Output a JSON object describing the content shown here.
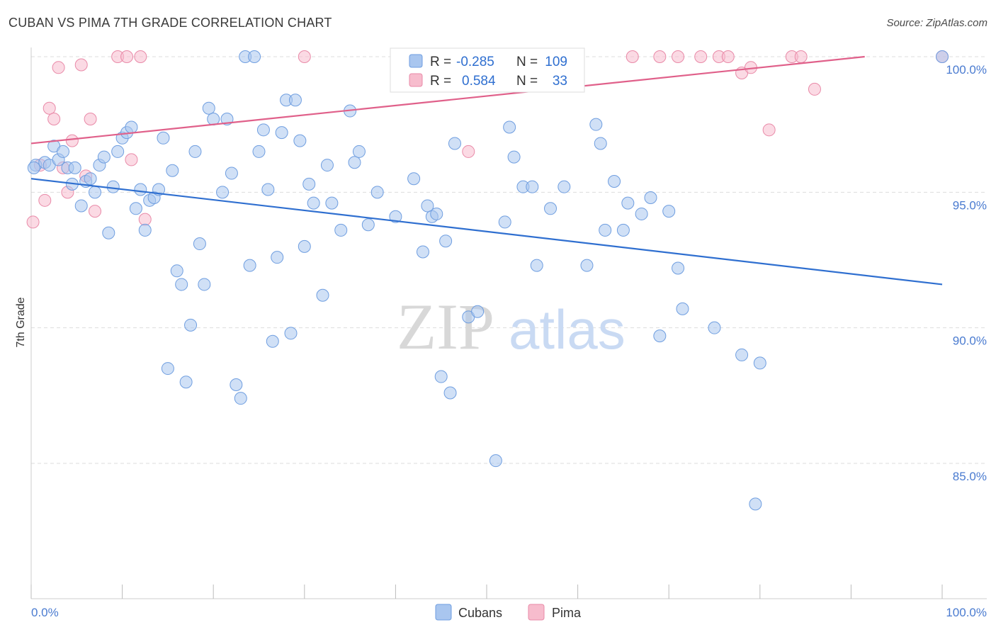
{
  "title": "CUBAN VS PIMA 7TH GRADE CORRELATION CHART",
  "source": "Source: ZipAtlas.com",
  "watermark": {
    "zip": "ZIP",
    "atlas": "atlas"
  },
  "colors": {
    "cubans_fill": "#a9c6ef",
    "cubans_stroke": "#6f9ee0",
    "cubans_line": "#2f6fd0",
    "pima_fill": "#f7bccd",
    "pima_stroke": "#e98aa8",
    "pima_line": "#e0608a",
    "grid": "#dddddd",
    "axis_label": "#4a7bd0"
  },
  "legend": {
    "rows": [
      {
        "r_label": "R =",
        "r_value": "-0.285",
        "n_label": "N =",
        "n_value": "109"
      },
      {
        "r_label": "R =",
        "r_value": "0.584",
        "n_label": "N =",
        "n_value": "33"
      }
    ]
  },
  "chart_data": {
    "type": "scatter",
    "title": "CUBAN VS PIMA 7TH GRADE CORRELATION CHART",
    "xlabel": "",
    "ylabel": "7th Grade",
    "xlim": [
      0,
      100
    ],
    "ylim": [
      80.5,
      100.7
    ],
    "x_tick_labels": [
      "0.0%",
      "100.0%"
    ],
    "y_ticks": [
      100,
      95,
      90,
      85
    ],
    "y_tick_labels": [
      "100.0%",
      "95.0%",
      "90.0%",
      "85.0%"
    ],
    "grid": true,
    "legend_placement": "bottom-center",
    "series": [
      {
        "name": "Cubans",
        "trend": {
          "x": [
            0,
            100
          ],
          "y": [
            95.5,
            91.6
          ]
        },
        "points": [
          [
            0.5,
            96.0
          ],
          [
            1.5,
            96.1
          ],
          [
            2,
            96.0
          ],
          [
            2.5,
            96.7
          ],
          [
            3,
            96.2
          ],
          [
            3.5,
            96.5
          ],
          [
            4,
            95.9
          ],
          [
            4.5,
            95.3
          ],
          [
            4.8,
            95.9
          ],
          [
            5.5,
            94.5
          ],
          [
            6,
            95.4
          ],
          [
            6.5,
            95.5
          ],
          [
            7,
            95.0
          ],
          [
            7.5,
            96.0
          ],
          [
            8,
            96.3
          ],
          [
            8.5,
            93.5
          ],
          [
            9,
            95.2
          ],
          [
            9.5,
            96.5
          ],
          [
            10,
            97.0
          ],
          [
            10.5,
            97.2
          ],
          [
            11,
            97.4
          ],
          [
            11.5,
            94.4
          ],
          [
            12,
            95.1
          ],
          [
            12.5,
            93.6
          ],
          [
            13,
            94.7
          ],
          [
            13.5,
            94.8
          ],
          [
            14,
            95.1
          ],
          [
            14.5,
            97.0
          ],
          [
            15,
            88.5
          ],
          [
            15.5,
            95.8
          ],
          [
            16,
            92.1
          ],
          [
            16.5,
            91.6
          ],
          [
            17,
            88.0
          ],
          [
            17.5,
            90.1
          ],
          [
            18,
            96.5
          ],
          [
            18.5,
            93.1
          ],
          [
            19,
            91.6
          ],
          [
            19.5,
            98.1
          ],
          [
            20,
            97.7
          ],
          [
            21,
            95.0
          ],
          [
            21.5,
            97.7
          ],
          [
            22,
            95.7
          ],
          [
            22.5,
            87.9
          ],
          [
            23,
            87.4
          ],
          [
            23.5,
            100.0
          ],
          [
            24,
            92.3
          ],
          [
            24.5,
            100.0
          ],
          [
            25,
            96.5
          ],
          [
            25.5,
            97.3
          ],
          [
            26,
            95.1
          ],
          [
            26.5,
            89.5
          ],
          [
            27,
            92.6
          ],
          [
            27.5,
            97.2
          ],
          [
            28,
            98.4
          ],
          [
            28.5,
            89.8
          ],
          [
            29,
            98.4
          ],
          [
            29.5,
            96.9
          ],
          [
            30,
            93.0
          ],
          [
            30.5,
            95.3
          ],
          [
            31,
            94.6
          ],
          [
            32,
            91.2
          ],
          [
            32.5,
            96.0
          ],
          [
            33,
            94.6
          ],
          [
            34,
            93.6
          ],
          [
            35,
            98.0
          ],
          [
            35.5,
            96.1
          ],
          [
            36,
            96.5
          ],
          [
            37,
            93.8
          ],
          [
            38,
            95.0
          ],
          [
            40,
            94.1
          ],
          [
            42,
            95.5
          ],
          [
            43,
            92.8
          ],
          [
            43.5,
            94.5
          ],
          [
            44,
            94.1
          ],
          [
            44.5,
            94.2
          ],
          [
            45,
            88.2
          ],
          [
            45.5,
            93.2
          ],
          [
            46,
            87.6
          ],
          [
            46.5,
            96.8
          ],
          [
            48,
            90.4
          ],
          [
            49,
            90.6
          ],
          [
            51,
            85.1
          ],
          [
            52,
            93.9
          ],
          [
            52.5,
            97.4
          ],
          [
            53,
            96.3
          ],
          [
            54,
            95.2
          ],
          [
            55,
            95.2
          ],
          [
            55.5,
            92.3
          ],
          [
            57,
            94.4
          ],
          [
            58.5,
            95.2
          ],
          [
            61,
            92.3
          ],
          [
            62,
            97.5
          ],
          [
            62.5,
            96.8
          ],
          [
            63,
            93.6
          ],
          [
            64,
            95.4
          ],
          [
            65,
            93.6
          ],
          [
            65.5,
            94.6
          ],
          [
            67,
            94.2
          ],
          [
            68,
            94.8
          ],
          [
            69,
            89.7
          ],
          [
            70,
            94.3
          ],
          [
            71,
            92.2
          ],
          [
            71.5,
            90.7
          ],
          [
            75,
            90.0
          ],
          [
            78,
            89.0
          ],
          [
            79.5,
            83.5
          ],
          [
            80,
            88.7
          ],
          [
            100,
            100.0
          ],
          [
            0.3,
            95.9
          ]
        ]
      },
      {
        "name": "Pima",
        "trend": {
          "x": [
            0,
            91.5
          ],
          "y": [
            96.8,
            100.0
          ]
        },
        "points": [
          [
            0.2,
            93.9
          ],
          [
            1,
            96.0
          ],
          [
            1.5,
            94.7
          ],
          [
            2,
            98.1
          ],
          [
            2.5,
            97.7
          ],
          [
            3,
            99.6
          ],
          [
            3.5,
            95.9
          ],
          [
            4,
            95.0
          ],
          [
            4.5,
            96.9
          ],
          [
            5.5,
            99.7
          ],
          [
            6,
            95.6
          ],
          [
            6.5,
            97.7
          ],
          [
            7,
            94.3
          ],
          [
            9.5,
            100.0
          ],
          [
            10.5,
            100.0
          ],
          [
            11,
            96.2
          ],
          [
            12,
            100.0
          ],
          [
            12.5,
            94.0
          ],
          [
            30,
            100.0
          ],
          [
            48,
            96.5
          ],
          [
            66,
            100.0
          ],
          [
            69,
            100.0
          ],
          [
            71,
            100.0
          ],
          [
            73.5,
            100.0
          ],
          [
            75.5,
            100.0
          ],
          [
            76.5,
            100.0
          ],
          [
            78,
            99.4
          ],
          [
            79,
            99.6
          ],
          [
            81,
            97.3
          ],
          [
            83.5,
            100.0
          ],
          [
            84.5,
            100.0
          ],
          [
            86,
            98.8
          ],
          [
            100,
            100.0
          ]
        ]
      }
    ]
  }
}
